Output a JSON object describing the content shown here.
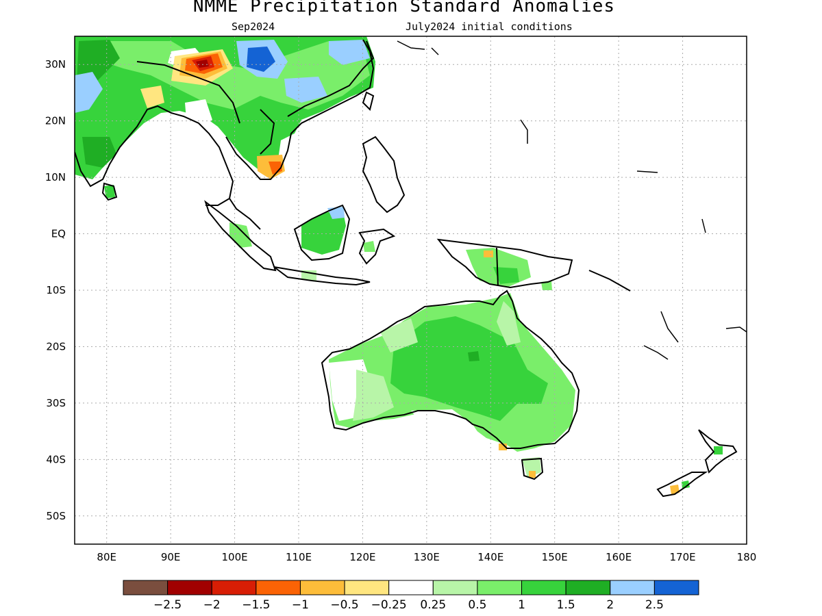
{
  "map": {
    "title": "NMME Precipitation Standard Anomalies",
    "target_month": "Sep2024",
    "initial_conditions": "July2024 initial conditions",
    "lon_range": [
      75,
      180
    ],
    "lat_range": [
      -55,
      35
    ],
    "lon_ticks": [
      "80E",
      "90E",
      "100E",
      "110E",
      "120E",
      "130E",
      "140E",
      "150E",
      "160E",
      "170E",
      "180"
    ],
    "lat_ticks": [
      "30N",
      "20N",
      "10N",
      "EQ",
      "10S",
      "20S",
      "30S",
      "40S",
      "50S"
    ],
    "grid": true
  },
  "legend": {
    "colors": [
      "#7a4e3e",
      "#a10000",
      "#d81e05",
      "#fb6305",
      "#fdbd3a",
      "#ffe680",
      "#ffffff",
      "#b8f5a8",
      "#7aee6a",
      "#37d33c",
      "#1fae24",
      "#9acfff",
      "#1463d4"
    ],
    "labels": [
      "−2.5",
      "−2",
      "−1.5",
      "−1",
      "−0.5",
      "−0.25",
      "0.25",
      "0.5",
      "1",
      "1.5",
      "2",
      "2.5"
    ]
  }
}
